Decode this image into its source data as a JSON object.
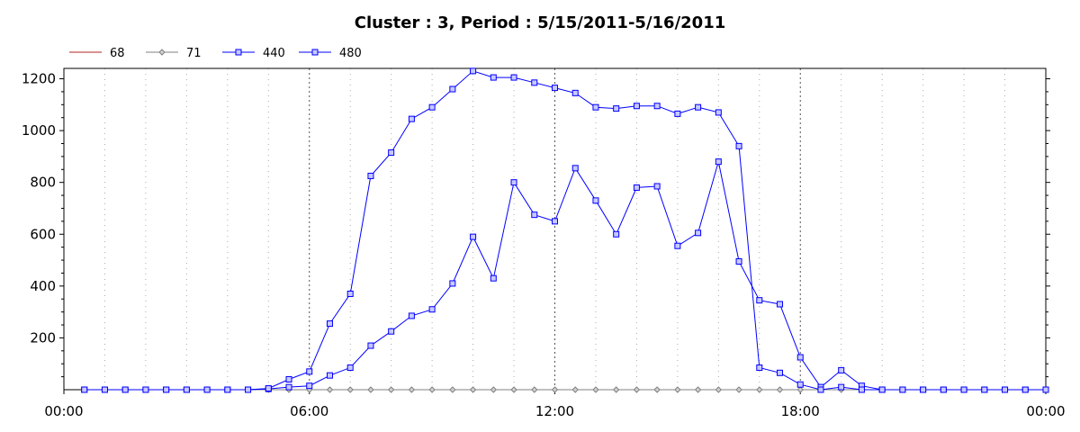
{
  "chart_data": {
    "type": "line",
    "title": "Cluster : 3, Period : 5/15/2011-5/16/2011",
    "xlabel": "",
    "ylabel": "",
    "x_ticks": [
      "00:00",
      "06:00",
      "12:00",
      "18:00",
      "00:00"
    ],
    "y_ticks": [
      200,
      400,
      600,
      800,
      1000,
      1200
    ],
    "ylim": [
      0,
      1240
    ],
    "xlim_hours": [
      0,
      24
    ],
    "grid": "vertical dotted",
    "legend_position": "top-left",
    "x_hours": [
      0.5,
      1.0,
      1.5,
      2.0,
      2.5,
      3.0,
      3.5,
      4.0,
      4.5,
      5.0,
      5.5,
      6.0,
      6.5,
      7.0,
      7.5,
      8.0,
      8.5,
      9.0,
      9.5,
      10.0,
      10.5,
      11.0,
      11.5,
      12.0,
      12.5,
      13.0,
      13.5,
      14.0,
      14.5,
      15.0,
      15.5,
      16.0,
      16.5,
      17.0,
      17.5,
      18.0,
      18.5,
      19.0,
      19.5,
      20.0,
      20.5,
      21.0,
      21.5,
      22.0,
      22.5,
      23.0,
      23.5,
      24.0
    ],
    "series": [
      {
        "name": "68",
        "color": "#b22222",
        "marker": "none",
        "values": [
          0,
          0,
          0,
          0,
          0,
          0,
          0,
          0,
          0,
          0,
          0,
          0,
          0,
          0,
          0,
          0,
          0,
          0,
          0,
          0,
          0,
          0,
          0,
          0,
          0,
          0,
          0,
          0,
          0,
          0,
          0,
          0,
          0,
          0,
          0,
          0,
          0,
          0,
          0,
          0,
          0,
          0,
          0,
          0,
          0,
          0,
          0,
          0
        ]
      },
      {
        "name": "71",
        "color": "#808080",
        "marker": "diamond",
        "values": [
          0,
          0,
          0,
          0,
          0,
          0,
          0,
          0,
          0,
          0,
          0,
          0,
          0,
          0,
          0,
          0,
          0,
          0,
          0,
          0,
          0,
          0,
          0,
          0,
          0,
          0,
          0,
          0,
          0,
          0,
          0,
          0,
          0,
          0,
          0,
          0,
          0,
          0,
          0,
          0,
          0,
          0,
          0,
          0,
          0,
          0,
          0,
          0
        ]
      },
      {
        "name": "440",
        "color": "#0000ff",
        "marker": "square",
        "values": [
          0,
          0,
          0,
          0,
          0,
          0,
          0,
          0,
          0,
          3,
          10,
          15,
          55,
          85,
          170,
          225,
          285,
          310,
          410,
          590,
          430,
          800,
          675,
          650,
          855,
          730,
          600,
          780,
          785,
          555,
          605,
          880,
          495,
          345,
          330,
          125,
          10,
          75,
          15,
          0,
          0,
          0,
          0,
          0,
          0,
          0,
          0,
          0
        ]
      },
      {
        "name": "480",
        "color": "#0000ff",
        "marker": "square",
        "values": [
          0,
          0,
          0,
          0,
          0,
          0,
          0,
          0,
          0,
          5,
          40,
          70,
          255,
          370,
          825,
          915,
          1045,
          1090,
          1160,
          1230,
          1205,
          1205,
          1185,
          1165,
          1145,
          1090,
          1085,
          1095,
          1095,
          1065,
          1090,
          1070,
          940,
          85,
          65,
          20,
          0,
          10,
          0,
          0,
          0,
          0,
          0,
          0,
          0,
          0,
          0,
          0
        ]
      }
    ]
  }
}
